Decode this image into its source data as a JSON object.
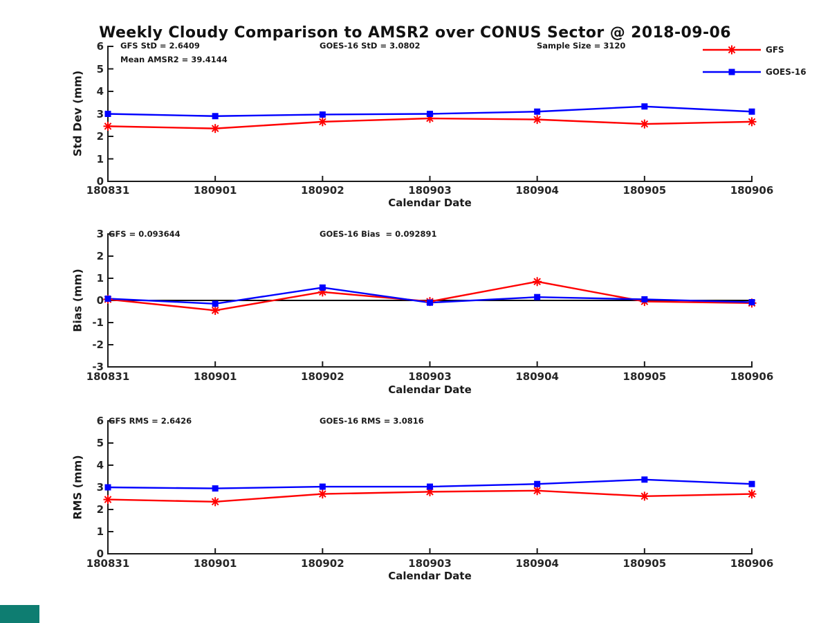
{
  "title": "Weekly Cloudy Comparison to AMSR2 over CONUS Sector @ 2018-09-06",
  "legend": {
    "position": "top-right",
    "items": [
      {
        "label": "GFS",
        "color": "#FF0000",
        "marker": "asterisk"
      },
      {
        "label": "GOES-16",
        "color": "#0000FF",
        "marker": "square"
      }
    ]
  },
  "corner_patch": {
    "color": "#0E7D71"
  },
  "chart_data": [
    {
      "type": "line",
      "ylabel": "Std Dev (mm)",
      "xlabel": "Calendar Date",
      "categories": [
        "180831",
        "180901",
        "180902",
        "180903",
        "180904",
        "180905",
        "180906"
      ],
      "ylim": [
        0,
        6
      ],
      "yticks": [
        0,
        1,
        2,
        3,
        4,
        5,
        6
      ],
      "grid": false,
      "zero_line": false,
      "annotations": [
        "GFS StD = 2.6409",
        "Mean AMSR2 = 39.4144",
        "GOES-16 StD = 3.0802",
        "Sample Size = 3120"
      ],
      "series": [
        {
          "name": "GFS",
          "color": "#FF0000",
          "marker": "asterisk",
          "values": [
            2.45,
            2.35,
            2.65,
            2.8,
            2.75,
            2.55,
            2.65
          ]
        },
        {
          "name": "GOES-16",
          "color": "#0000FF",
          "marker": "square",
          "values": [
            3.0,
            2.9,
            2.97,
            3.0,
            3.1,
            3.33,
            3.1
          ]
        }
      ]
    },
    {
      "type": "line",
      "ylabel": "Bias (mm)",
      "xlabel": "Calendar Date",
      "categories": [
        "180831",
        "180901",
        "180902",
        "180903",
        "180904",
        "180905",
        "180906"
      ],
      "ylim": [
        -3,
        3
      ],
      "yticks": [
        -3,
        -2,
        -1,
        0,
        1,
        2,
        3
      ],
      "grid": false,
      "zero_line": true,
      "annotations": [
        "GFS = 0.093644",
        "GOES-16 Bias  = 0.092891"
      ],
      "series": [
        {
          "name": "GFS",
          "color": "#FF0000",
          "marker": "asterisk",
          "values": [
            0.05,
            -0.45,
            0.38,
            -0.05,
            0.85,
            -0.05,
            -0.12
          ]
        },
        {
          "name": "GOES-16",
          "color": "#0000FF",
          "marker": "square",
          "values": [
            0.08,
            -0.15,
            0.58,
            -0.1,
            0.15,
            0.05,
            -0.08
          ]
        }
      ]
    },
    {
      "type": "line",
      "ylabel": "RMS (mm)",
      "xlabel": "Calendar Date",
      "categories": [
        "180831",
        "180901",
        "180902",
        "180903",
        "180904",
        "180905",
        "180906"
      ],
      "ylim": [
        0,
        6
      ],
      "yticks": [
        0,
        1,
        2,
        3,
        4,
        5,
        6
      ],
      "grid": false,
      "zero_line": false,
      "annotations": [
        "GFS RMS = 2.6426",
        "GOES-16 RMS = 3.0816"
      ],
      "series": [
        {
          "name": "GFS",
          "color": "#FF0000",
          "marker": "asterisk",
          "values": [
            2.45,
            2.35,
            2.7,
            2.8,
            2.85,
            2.6,
            2.7
          ]
        },
        {
          "name": "GOES-16",
          "color": "#0000FF",
          "marker": "square",
          "values": [
            3.0,
            2.95,
            3.03,
            3.03,
            3.15,
            3.35,
            3.15
          ]
        }
      ]
    }
  ]
}
